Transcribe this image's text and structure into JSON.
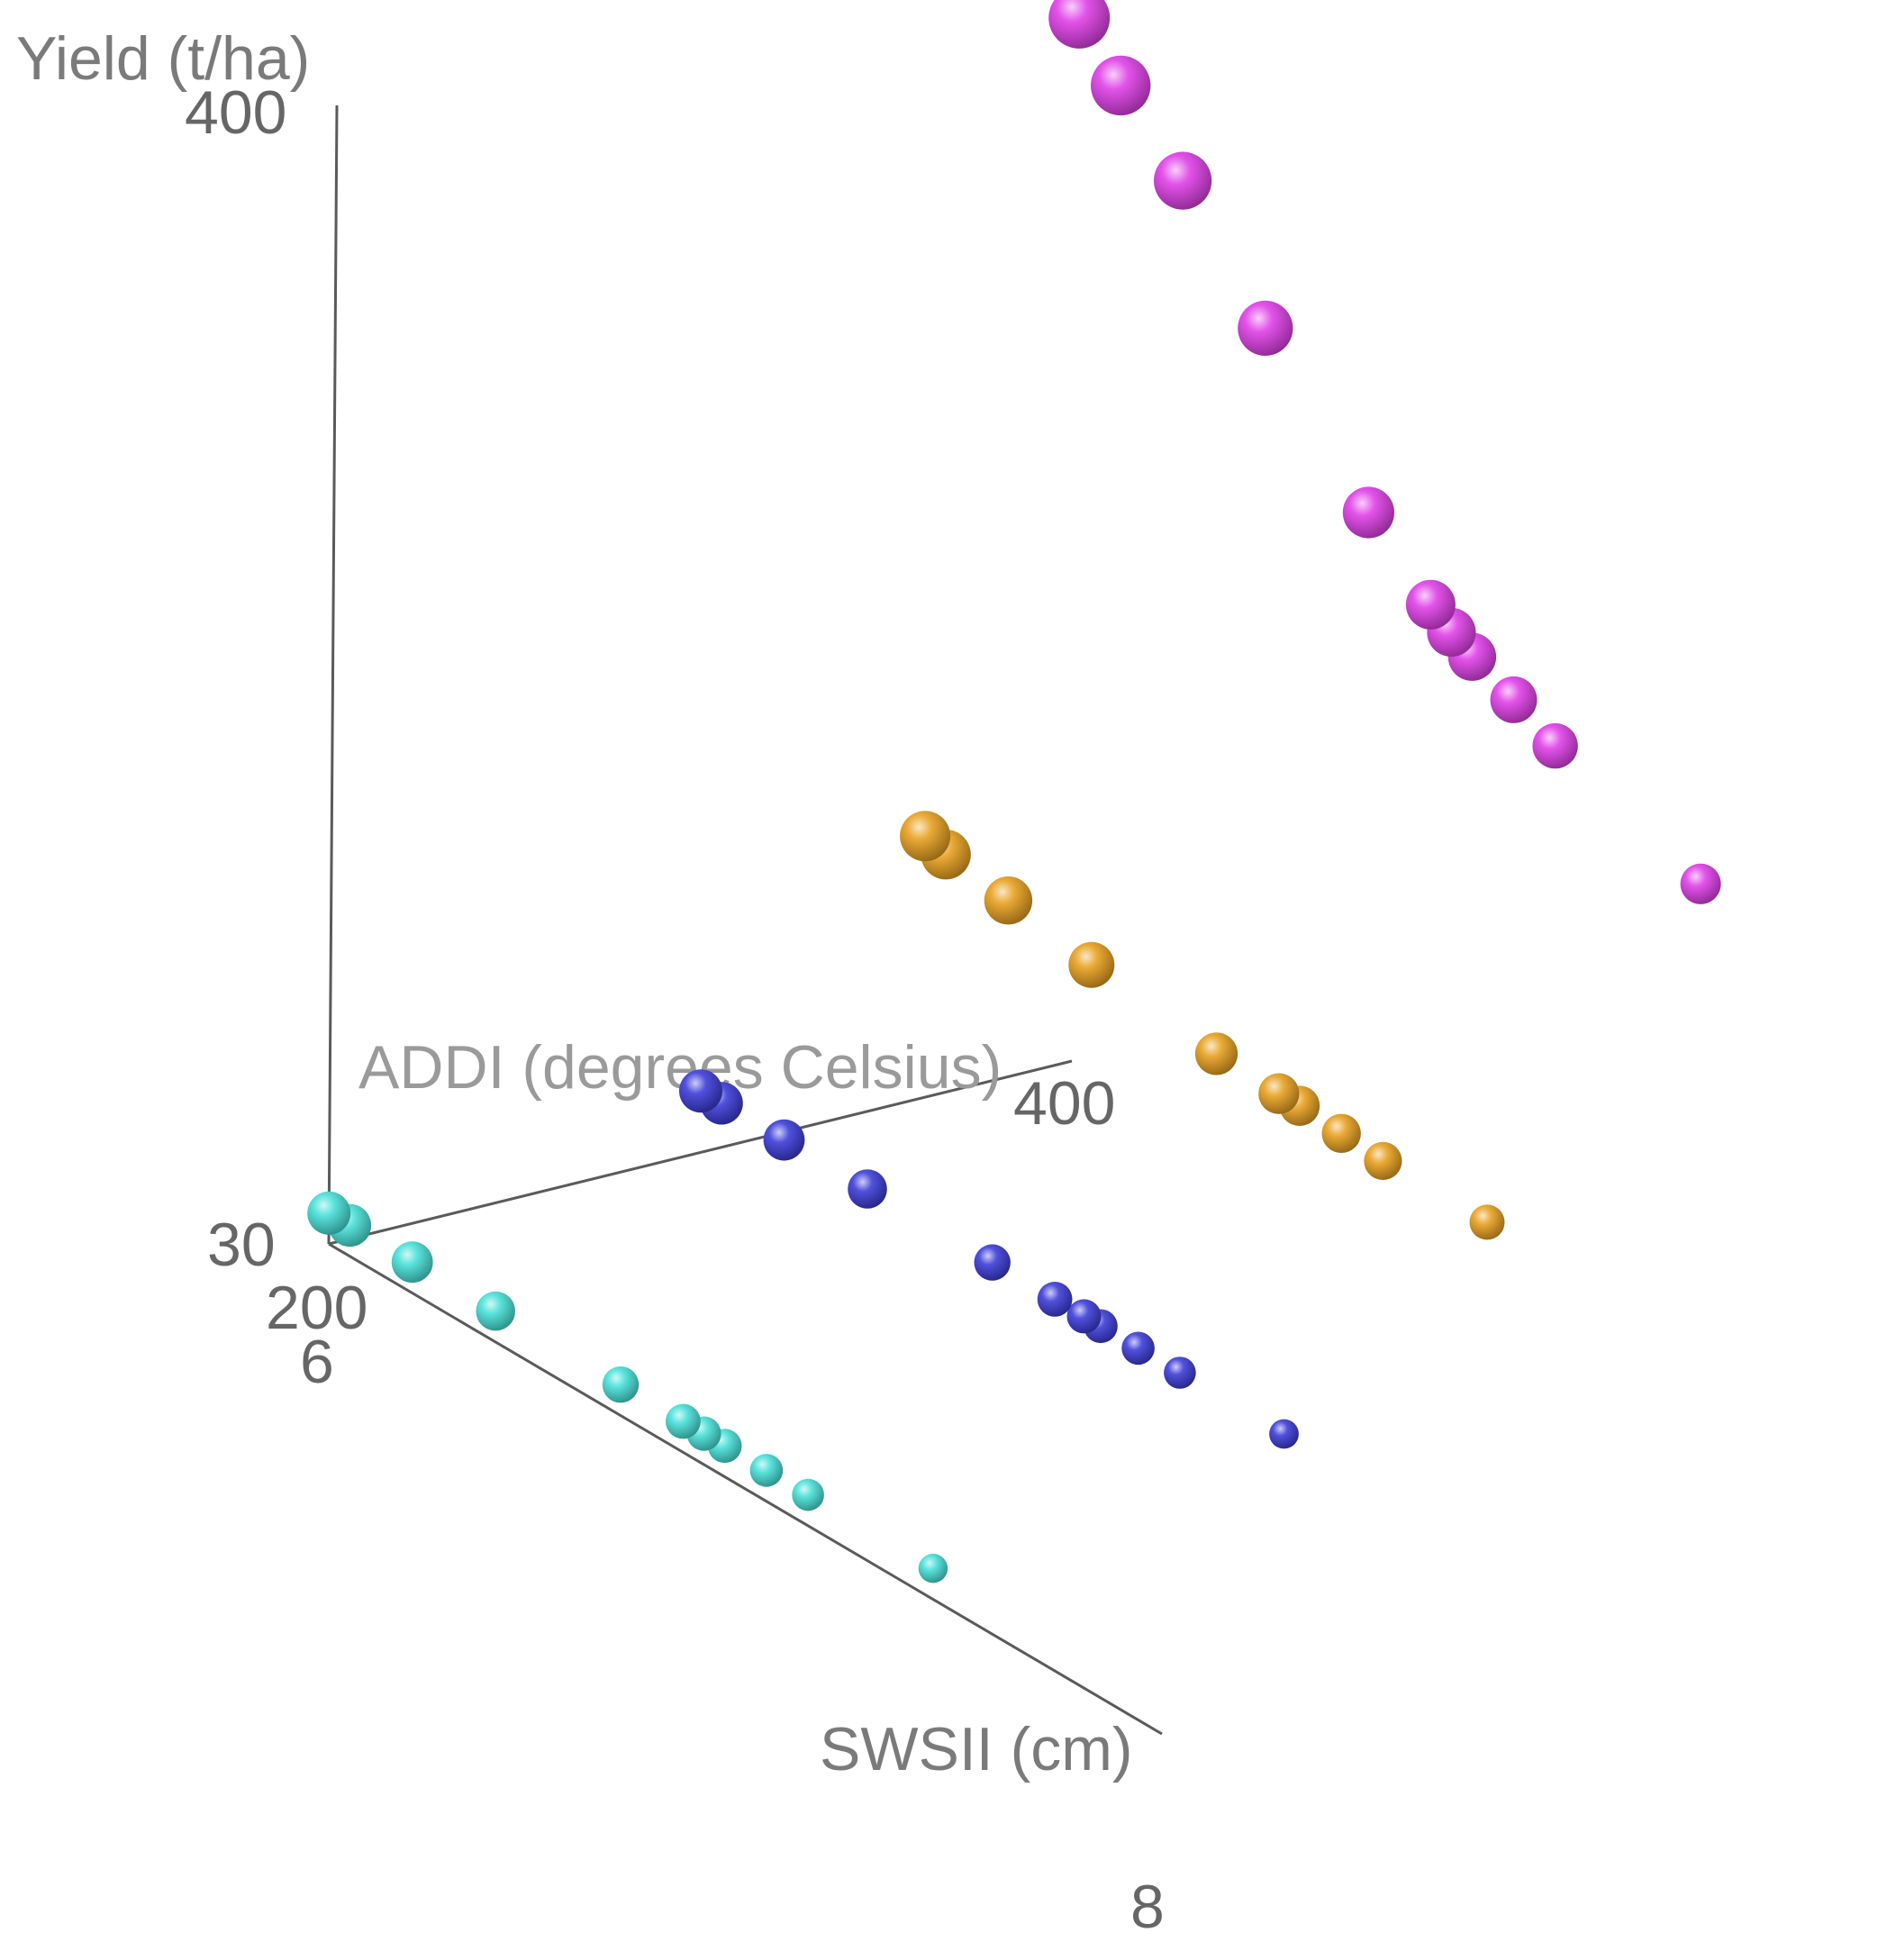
{
  "chart_data": {
    "type": "scatter",
    "title": "",
    "axes": {
      "x": {
        "label": "SWSII (cm)",
        "ticks": [
          "6",
          "8"
        ],
        "range": [
          6,
          8
        ]
      },
      "y": {
        "label": "ADDI (degrees Celsius)",
        "ticks": [
          "200",
          "400"
        ],
        "range": [
          200,
          400
        ]
      },
      "z": {
        "label": "Yield (t/ha)",
        "ticks": [
          "30",
          "400"
        ],
        "range": [
          30,
          400
        ]
      }
    },
    "series": [
      {
        "color": "#e040e8",
        "points": [
          {
            "x": 6.0,
            "y": 400,
            "z": 369
          },
          {
            "x": 6.1,
            "y": 400,
            "z": 355
          },
          {
            "x": 6.25,
            "y": 400,
            "z": 336
          },
          {
            "x": 6.45,
            "y": 400,
            "z": 304
          },
          {
            "x": 6.7,
            "y": 400,
            "z": 264
          },
          {
            "x": 6.85,
            "y": 400,
            "z": 246
          },
          {
            "x": 6.9,
            "y": 400,
            "z": 241
          },
          {
            "x": 6.95,
            "y": 400,
            "z": 237
          },
          {
            "x": 7.05,
            "y": 400,
            "z": 231
          },
          {
            "x": 7.15,
            "y": 400,
            "z": 224
          },
          {
            "x": 7.5,
            "y": 400,
            "z": 207
          }
        ]
      },
      {
        "color": "#e8a020",
        "points": [
          {
            "x": 6.0,
            "y": 360,
            "z": 115
          },
          {
            "x": 6.05,
            "y": 360,
            "z": 113
          },
          {
            "x": 6.2,
            "y": 360,
            "z": 110
          },
          {
            "x": 6.4,
            "y": 360,
            "z": 105
          },
          {
            "x": 6.7,
            "y": 360,
            "z": 100
          },
          {
            "x": 6.85,
            "y": 360,
            "z": 99
          },
          {
            "x": 6.9,
            "y": 360,
            "z": 99
          },
          {
            "x": 7.0,
            "y": 360,
            "z": 98
          },
          {
            "x": 7.1,
            "y": 360,
            "z": 97
          },
          {
            "x": 7.35,
            "y": 360,
            "z": 97
          }
        ]
      },
      {
        "color": "#3c3cd8",
        "points": [
          {
            "x": 6.0,
            "y": 300,
            "z": 50
          },
          {
            "x": 6.05,
            "y": 300,
            "z": 50
          },
          {
            "x": 6.2,
            "y": 300,
            "z": 50
          },
          {
            "x": 6.4,
            "y": 300,
            "z": 50
          },
          {
            "x": 6.7,
            "y": 300,
            "z": 50
          },
          {
            "x": 6.85,
            "y": 300,
            "z": 50
          },
          {
            "x": 6.92,
            "y": 300,
            "z": 50
          },
          {
            "x": 6.96,
            "y": 300,
            "z": 50
          },
          {
            "x": 7.05,
            "y": 300,
            "z": 50
          },
          {
            "x": 7.15,
            "y": 300,
            "z": 50
          },
          {
            "x": 7.4,
            "y": 300,
            "z": 50
          }
        ]
      },
      {
        "color": "#48e0d8",
        "points": [
          {
            "x": 6.0,
            "y": 200,
            "z": 40
          },
          {
            "x": 6.05,
            "y": 200,
            "z": 40
          },
          {
            "x": 6.2,
            "y": 200,
            "z": 40
          },
          {
            "x": 6.4,
            "y": 200,
            "z": 40
          },
          {
            "x": 6.7,
            "y": 200,
            "z": 40
          },
          {
            "x": 6.85,
            "y": 200,
            "z": 40
          },
          {
            "x": 6.9,
            "y": 200,
            "z": 40
          },
          {
            "x": 6.95,
            "y": 200,
            "z": 40
          },
          {
            "x": 7.05,
            "y": 200,
            "z": 40
          },
          {
            "x": 7.15,
            "y": 200,
            "z": 40
          },
          {
            "x": 7.45,
            "y": 200,
            "z": 40
          }
        ]
      }
    ]
  }
}
